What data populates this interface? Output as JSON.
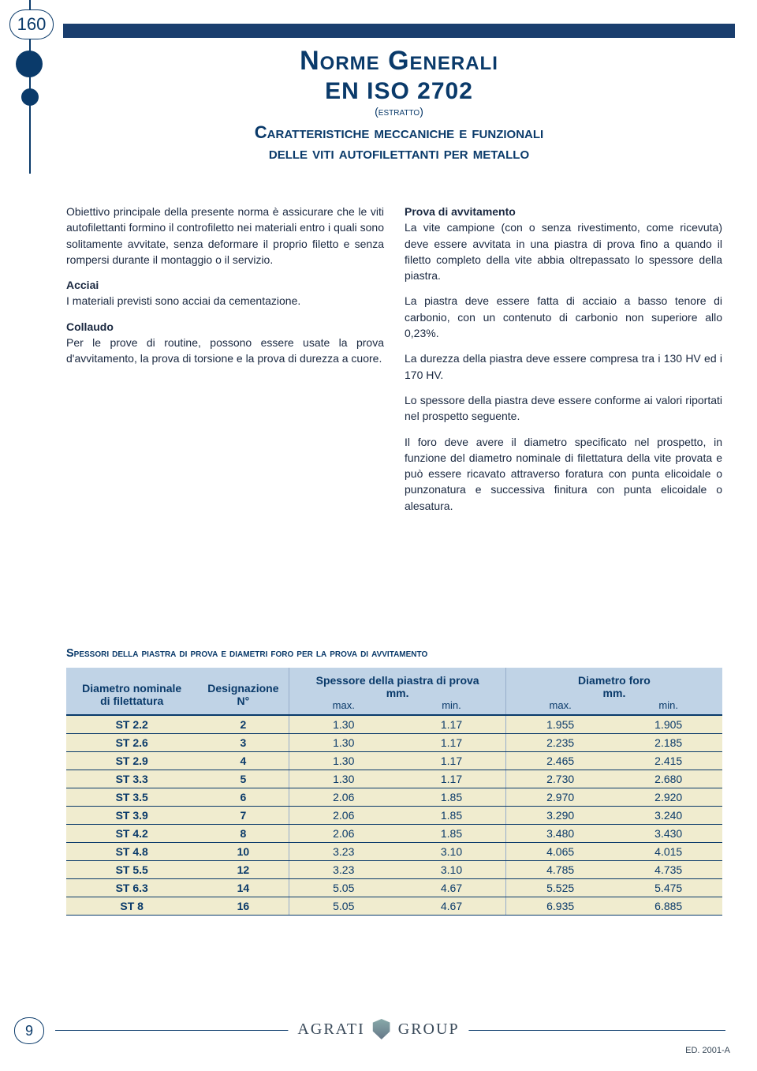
{
  "page_number_top": "160",
  "header": {
    "title_line1": "Norme Generali",
    "title_line2": "EN ISO 2702",
    "subtitle_small": "(estratto)",
    "subtitle_line1": "Caratteristiche meccaniche e funzionali",
    "subtitle_line2": "delle viti autofilettanti per metallo"
  },
  "left_col": {
    "intro": "Obiettivo principale della presente norma è assicurare che le viti autofilettanti formino il controfiletto nei materiali entro i quali sono solitamente avvitate, senza deformare il proprio filetto e senza rompersi durante il montaggio o il servizio.",
    "acciai_head": "Acciai",
    "acciai_body": "I materiali previsti sono acciai da cementazione.",
    "collaudo_head": "Collaudo",
    "collaudo_body": "Per le prove di routine, possono essere usate la prova d'avvitamento, la prova di torsione e la prova di durezza a cuore."
  },
  "right_col": {
    "prova_head": "Prova di avvitamento",
    "p1": "La vite campione (con o senza rivestimento, come ricevuta) deve essere avvitata in una piastra di prova fino a quando il filetto completo della vite abbia oltrepassato lo spessore della piastra.",
    "p2": "La piastra deve essere fatta di acciaio a basso tenore di carbonio, con un contenuto di carbonio non superiore allo 0,23%.",
    "p3": "La durezza della piastra deve essere compresa tra i 130 HV ed i 170 HV.",
    "p4": "Lo spessore della piastra deve essere conforme ai valori riportati nel prospetto seguente.",
    "p5": "Il foro deve avere il diametro specificato nel prospetto, in funzione del diametro nominale di filettatura della vite provata e può essere ricavato attraverso foratura con punta elicoidale o punzonatura e successiva finitura con punta elicoidale o alesatura."
  },
  "table": {
    "title": "Spessori della piastra di prova e diametri foro per la prova di avvitamento",
    "head": {
      "c0a": "Diametro nominale",
      "c0b": "di filettatura",
      "c1a": "Designazione",
      "c1b": "N°",
      "c2a": "Spessore della piastra di prova",
      "c2b": "mm.",
      "c3a": "Diametro foro",
      "c3b": "mm.",
      "max": "max.",
      "min": "min."
    },
    "rows": [
      {
        "d": "ST 2.2",
        "n": "2",
        "smax": "1.30",
        "smin": "1.17",
        "fmax": "1.955",
        "fmin": "1.905"
      },
      {
        "d": "ST 2.6",
        "n": "3",
        "smax": "1.30",
        "smin": "1.17",
        "fmax": "2.235",
        "fmin": "2.185"
      },
      {
        "d": "ST 2.9",
        "n": "4",
        "smax": "1.30",
        "smin": "1.17",
        "fmax": "2.465",
        "fmin": "2.415"
      },
      {
        "d": "ST 3.3",
        "n": "5",
        "smax": "1.30",
        "smin": "1.17",
        "fmax": "2.730",
        "fmin": "2.680"
      },
      {
        "d": "ST 3.5",
        "n": "6",
        "smax": "2.06",
        "smin": "1.85",
        "fmax": "2.970",
        "fmin": "2.920"
      },
      {
        "d": "ST 3.9",
        "n": "7",
        "smax": "2.06",
        "smin": "1.85",
        "fmax": "3.290",
        "fmin": "3.240"
      },
      {
        "d": "ST 4.2",
        "n": "8",
        "smax": "2.06",
        "smin": "1.85",
        "fmax": "3.480",
        "fmin": "3.430"
      },
      {
        "d": "ST 4.8",
        "n": "10",
        "smax": "3.23",
        "smin": "3.10",
        "fmax": "4.065",
        "fmin": "4.015"
      },
      {
        "d": "ST 5.5",
        "n": "12",
        "smax": "3.23",
        "smin": "3.10",
        "fmax": "4.785",
        "fmin": "4.735"
      },
      {
        "d": "ST 6.3",
        "n": "14",
        "smax": "5.05",
        "smin": "4.67",
        "fmax": "5.525",
        "fmin": "5.475"
      },
      {
        "d": "ST 8",
        "n": "16",
        "smax": "5.05",
        "smin": "4.67",
        "fmax": "6.935",
        "fmin": "6.885"
      }
    ],
    "colors": {
      "head_bg": "#c0d3e6",
      "row_bg": "#f0eccf",
      "border": "#0a3a6a"
    }
  },
  "footer": {
    "page_num": "9",
    "brand_left": "AGRATI",
    "brand_right": "GROUP",
    "edition": "ED. 2001-A"
  }
}
